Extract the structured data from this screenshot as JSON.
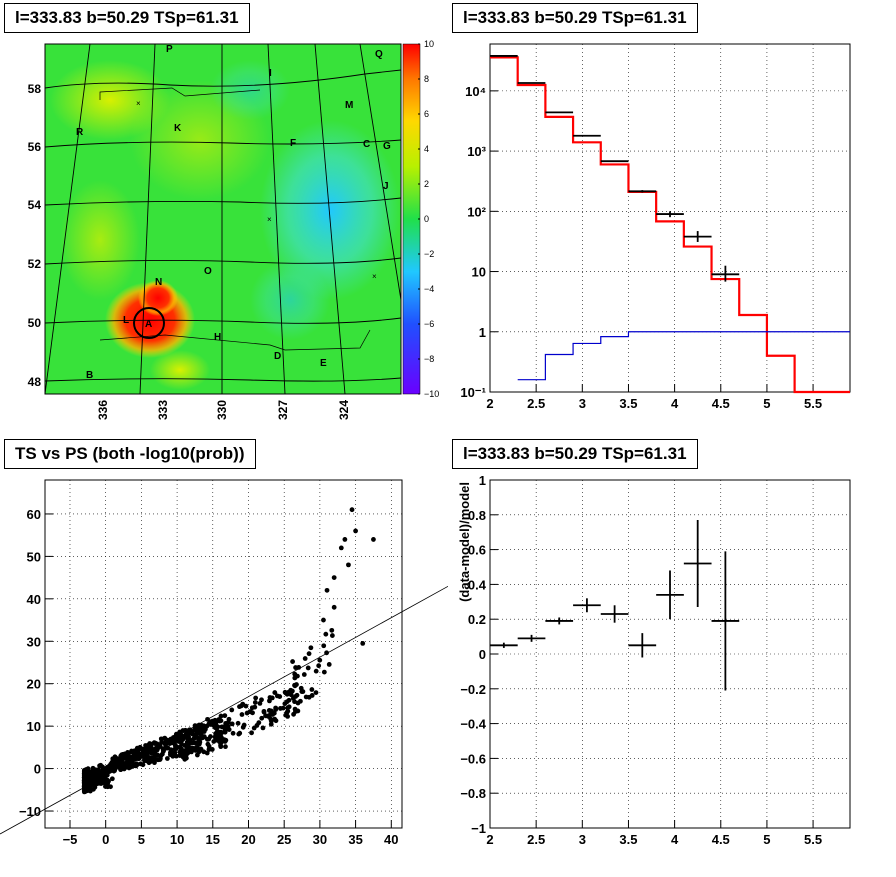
{
  "panels": {
    "map_title": "l=333.83 b=50.29 TSp=61.31",
    "spectrum_title": "l=333.83 b=50.29 TSp=61.31",
    "scatter_title": "TS vs PS (both -log10(prob))",
    "residual_title": "l=333.83 b=50.29 TSp=61.31"
  },
  "chart_data": [
    {
      "type": "heatmap",
      "title": "l=333.83 b=50.29 TSp=61.31",
      "x_ticks": [
        "336",
        "333",
        "330",
        "327",
        "324"
      ],
      "y_ticks": [
        "48",
        "50",
        "52",
        "54",
        "56",
        "58"
      ],
      "colorbar_ticks": [
        "10",
        "8",
        "6",
        "4",
        "2",
        "0",
        "−2",
        "−4",
        "−6",
        "−8",
        "−10"
      ],
      "zlim": [
        -10,
        10
      ],
      "source_labels": [
        "P",
        "Q",
        "I",
        "M",
        "R",
        "K",
        "F",
        "C",
        "G",
        "J",
        "O",
        "N",
        "L",
        "A",
        "H",
        "D",
        "E",
        "B"
      ],
      "colors": {
        "low": "#6a00ff",
        "mid": "#20e04a",
        "high": "#ff0000"
      }
    },
    {
      "type": "line",
      "title": "l=333.83 b=50.29 TSp=61.31",
      "yscale": "log",
      "xlim": [
        2,
        5.9
      ],
      "ylim": [
        0.1,
        60000
      ],
      "x_ticks": [
        "2",
        "2.5",
        "3",
        "3.5",
        "4",
        "4.5",
        "5",
        "5.5"
      ],
      "y_ticks": [
        "10⁻¹",
        "1",
        "10",
        "10²",
        "10³",
        "10⁴"
      ],
      "series": [
        {
          "color": "#ff0000",
          "steps": [
            [
              2.0,
              2.3,
              36000
            ],
            [
              2.3,
              2.6,
              12500
            ],
            [
              2.6,
              2.9,
              3700
            ],
            [
              2.9,
              3.2,
              1400
            ],
            [
              3.2,
              3.5,
              600
            ],
            [
              3.5,
              3.8,
              210
            ],
            [
              3.8,
              4.1,
              68
            ],
            [
              4.1,
              4.4,
              26
            ],
            [
              4.4,
              4.7,
              7.5
            ],
            [
              4.7,
              5.0,
              1.9
            ],
            [
              5.0,
              5.3,
              0.4
            ],
            [
              5.3,
              5.9,
              0.1
            ]
          ]
        },
        {
          "color": "#0000cc",
          "steps": [
            [
              2.3,
              2.6,
              0.16
            ],
            [
              2.6,
              2.9,
              0.42
            ],
            [
              2.9,
              3.2,
              0.64
            ],
            [
              3.2,
              3.5,
              0.83
            ],
            [
              3.5,
              5.9,
              1.0
            ]
          ]
        }
      ],
      "points": [
        {
          "x": 2.15,
          "y": 38000,
          "xerr": 0.15,
          "ylo": 38000,
          "yhi": 38000
        },
        {
          "x": 2.45,
          "y": 13500,
          "xerr": 0.15,
          "ylo": 13500,
          "yhi": 13500
        },
        {
          "x": 2.75,
          "y": 4400,
          "xerr": 0.15,
          "ylo": 4400,
          "yhi": 4400
        },
        {
          "x": 3.05,
          "y": 1800,
          "xerr": 0.15,
          "ylo": 1800,
          "yhi": 1800
        },
        {
          "x": 3.35,
          "y": 680,
          "xerr": 0.15,
          "ylo": 680,
          "yhi": 680
        },
        {
          "x": 3.65,
          "y": 215,
          "xerr": 0.15,
          "ylo": 205,
          "yhi": 225
        },
        {
          "x": 3.95,
          "y": 90,
          "xerr": 0.15,
          "ylo": 80,
          "yhi": 100
        },
        {
          "x": 4.25,
          "y": 38,
          "xerr": 0.15,
          "ylo": 31,
          "yhi": 47
        },
        {
          "x": 4.55,
          "y": 9,
          "xerr": 0.15,
          "ylo": 6.8,
          "yhi": 12.5
        }
      ]
    },
    {
      "type": "scatter",
      "title": "TS vs PS (both -log10(prob))",
      "xlim": [
        -8.5,
        41.5
      ],
      "ylim": [
        -14,
        68
      ],
      "x_ticks": [
        "−5",
        "0",
        "5",
        "10",
        "15",
        "20",
        "25",
        "30",
        "35",
        "40"
      ],
      "y_ticks": [
        "−10",
        "0",
        "10",
        "20",
        "30",
        "40",
        "50",
        "60"
      ],
      "line": {
        "x0": -8.5,
        "y0": -10.7,
        "x1": 41.5,
        "y1": 42
      }
    },
    {
      "type": "scatter",
      "title": "l=333.83 b=50.29 TSp=61.31",
      "ylabel": "(data-model)/model",
      "xlim": [
        2,
        5.9
      ],
      "ylim": [
        -1,
        1
      ],
      "x_ticks": [
        "2",
        "2.5",
        "3",
        "3.5",
        "4",
        "4.5",
        "5",
        "5.5"
      ],
      "y_ticks": [
        "−1",
        "−0.8",
        "−0.6",
        "−0.4",
        "−0.2",
        "0",
        "0.2",
        "0.4",
        "0.6",
        "0.8",
        "1"
      ],
      "points": [
        {
          "x": 2.15,
          "y": 0.05,
          "xerr": 0.15,
          "yerr": 0.015
        },
        {
          "x": 2.45,
          "y": 0.09,
          "xerr": 0.15,
          "yerr": 0.02
        },
        {
          "x": 2.75,
          "y": 0.19,
          "xerr": 0.15,
          "yerr": 0.02
        },
        {
          "x": 3.05,
          "y": 0.28,
          "xerr": 0.15,
          "yerr": 0.04
        },
        {
          "x": 3.35,
          "y": 0.23,
          "xerr": 0.15,
          "yerr": 0.05
        },
        {
          "x": 3.65,
          "y": 0.05,
          "xerr": 0.15,
          "yerr": 0.07
        },
        {
          "x": 3.95,
          "y": 0.34,
          "xerr": 0.15,
          "yerr": 0.14
        },
        {
          "x": 4.25,
          "y": 0.52,
          "xerr": 0.15,
          "yerr": 0.25
        },
        {
          "x": 4.55,
          "y": 0.19,
          "xerr": 0.15,
          "yerr": 0.4
        }
      ]
    }
  ]
}
